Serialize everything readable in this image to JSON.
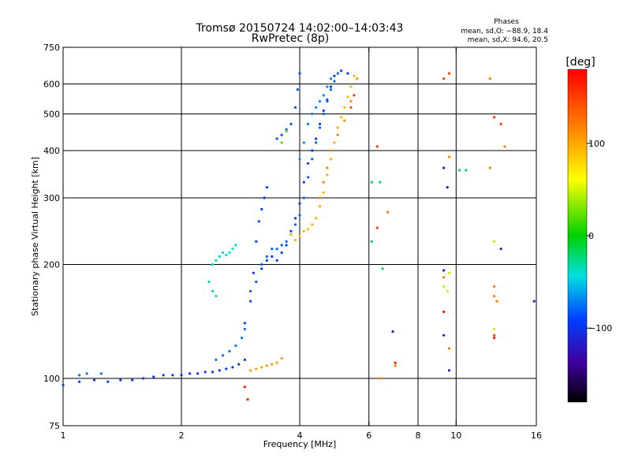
{
  "chart_data": {
    "type": "scatter",
    "title": "Tromsø 20150724 14:02:00–14:03:43",
    "subtitle": "RwPretec (8p)",
    "xlabel": "Frequency [MHz]",
    "ylabel": "Stationary phase Virtual Height [km]",
    "x_scale": "log",
    "y_scale": "log",
    "xlim": [
      1,
      16
    ],
    "ylim": [
      75,
      750
    ],
    "x_ticks": [
      1,
      2,
      4,
      6,
      8,
      10,
      16
    ],
    "x_tick_labels": [
      "1",
      "2",
      "4",
      "6",
      "8",
      "10",
      "16"
    ],
    "y_ticks": [
      75,
      100,
      200,
      300,
      400,
      500,
      600,
      750
    ],
    "y_tick_labels": [
      "75",
      "100",
      "200",
      "300",
      "400",
      "500",
      "600",
      "750"
    ],
    "grid": true,
    "grid_x": [
      2,
      4,
      6,
      8,
      10
    ],
    "grid_y": [
      100,
      200,
      300,
      400,
      500,
      600
    ],
    "stats": {
      "heading": "Phases",
      "line1": "mean, sd,O: −88.9, 18.4",
      "line2": "mean, sd,X:  94.6, 20.5"
    },
    "colorbar": {
      "label": "[deg]",
      "min": -180,
      "max": 180,
      "ticks": [
        -100,
        0,
        100
      ],
      "tick_labels": [
        "−100",
        "0",
        "100"
      ]
    },
    "traces": [
      {
        "phase": -95,
        "points": [
          [
            1.0,
            96
          ],
          [
            1.1,
            98
          ],
          [
            1.2,
            99
          ],
          [
            1.3,
            98
          ],
          [
            1.4,
            99
          ],
          [
            1.5,
            99
          ],
          [
            1.6,
            100
          ],
          [
            1.7,
            101
          ],
          [
            1.8,
            102
          ],
          [
            1.9,
            102
          ],
          [
            2.0,
            102
          ],
          [
            2.1,
            103
          ],
          [
            2.2,
            103
          ],
          [
            2.3,
            104
          ],
          [
            2.4,
            104
          ],
          [
            2.5,
            105
          ],
          [
            2.6,
            106
          ],
          [
            2.7,
            107
          ],
          [
            2.8,
            109
          ],
          [
            2.9,
            112
          ]
        ]
      },
      {
        "phase": -75,
        "points": [
          [
            1.1,
            102
          ],
          [
            1.15,
            103
          ],
          [
            1.25,
            103
          ],
          [
            2.45,
            112
          ],
          [
            2.55,
            115
          ],
          [
            2.65,
            118
          ],
          [
            2.75,
            122
          ],
          [
            2.85,
            128
          ],
          [
            2.9,
            135
          ]
        ]
      },
      {
        "phase": -90,
        "points": [
          [
            2.9,
            140
          ],
          [
            3.0,
            160
          ],
          [
            3.05,
            190
          ],
          [
            3.1,
            230
          ],
          [
            3.15,
            260
          ],
          [
            3.2,
            280
          ],
          [
            3.25,
            300
          ],
          [
            3.3,
            320
          ]
        ]
      },
      {
        "phase": -80,
        "points": [
          [
            3.0,
            170
          ],
          [
            3.1,
            180
          ],
          [
            3.2,
            200
          ],
          [
            3.3,
            210
          ],
          [
            3.4,
            220
          ],
          [
            3.5,
            220
          ],
          [
            3.6,
            225
          ],
          [
            3.7,
            230
          ],
          [
            3.8,
            240
          ],
          [
            3.9,
            255
          ],
          [
            4.0,
            270
          ],
          [
            4.1,
            300
          ],
          [
            4.2,
            340
          ],
          [
            4.3,
            380
          ],
          [
            4.4,
            420
          ],
          [
            4.5,
            460
          ],
          [
            4.6,
            500
          ],
          [
            4.7,
            540
          ],
          [
            4.8,
            580
          ],
          [
            4.9,
            610
          ],
          [
            5.0,
            640
          ]
        ]
      },
      {
        "phase": -95,
        "points": [
          [
            3.2,
            195
          ],
          [
            3.3,
            205
          ],
          [
            3.4,
            210
          ],
          [
            3.5,
            205
          ],
          [
            3.6,
            215
          ],
          [
            3.7,
            225
          ],
          [
            3.8,
            245
          ],
          [
            3.9,
            265
          ],
          [
            4.0,
            290
          ],
          [
            4.1,
            330
          ],
          [
            4.2,
            370
          ],
          [
            4.3,
            400
          ],
          [
            4.4,
            430
          ],
          [
            4.5,
            470
          ],
          [
            4.6,
            510
          ],
          [
            4.7,
            545
          ],
          [
            4.8,
            590
          ],
          [
            4.9,
            630
          ],
          [
            5.1,
            650
          ],
          [
            5.3,
            640
          ]
        ]
      },
      {
        "phase": -70,
        "points": [
          [
            4.0,
            380
          ],
          [
            4.1,
            420
          ],
          [
            4.2,
            470
          ],
          [
            4.3,
            500
          ],
          [
            4.4,
            520
          ],
          [
            4.5,
            540
          ],
          [
            4.6,
            560
          ],
          [
            4.7,
            590
          ],
          [
            4.8,
            620
          ]
        ]
      },
      {
        "phase": -85,
        "points": [
          [
            3.5,
            430
          ],
          [
            3.6,
            440
          ],
          [
            3.7,
            455
          ],
          [
            3.8,
            470
          ],
          [
            3.9,
            520
          ],
          [
            3.95,
            580
          ],
          [
            4.0,
            640
          ]
        ]
      },
      {
        "phase": 95,
        "points": [
          [
            3.8,
            240
          ],
          [
            3.9,
            232
          ],
          [
            4.0,
            238
          ],
          [
            4.1,
            245
          ],
          [
            4.2,
            248
          ],
          [
            4.3,
            255
          ],
          [
            4.4,
            265
          ],
          [
            4.5,
            285
          ],
          [
            4.6,
            310
          ],
          [
            4.7,
            345
          ],
          [
            4.8,
            380
          ],
          [
            4.9,
            420
          ],
          [
            5.0,
            460
          ],
          [
            5.1,
            490
          ],
          [
            5.2,
            520
          ],
          [
            5.3,
            555
          ],
          [
            5.4,
            590
          ],
          [
            5.5,
            630
          ]
        ]
      },
      {
        "phase": 115,
        "points": [
          [
            4.5,
            300
          ],
          [
            4.6,
            330
          ],
          [
            4.7,
            360
          ],
          [
            4.8,
            400
          ],
          [
            5.0,
            440
          ],
          [
            5.2,
            480
          ],
          [
            5.4,
            540
          ],
          [
            5.6,
            620
          ]
        ]
      },
      {
        "phase": 105,
        "points": [
          [
            3.0,
            105
          ],
          [
            3.1,
            106
          ],
          [
            3.2,
            107
          ],
          [
            3.3,
            108
          ],
          [
            3.4,
            109
          ],
          [
            3.5,
            110
          ],
          [
            3.6,
            113
          ]
        ]
      },
      {
        "phase": -40,
        "points": [
          [
            2.4,
            200
          ],
          [
            2.45,
            205
          ],
          [
            2.5,
            210
          ],
          [
            2.55,
            215
          ],
          [
            2.6,
            212
          ],
          [
            2.65,
            215
          ],
          [
            2.7,
            220
          ],
          [
            2.75,
            225
          ],
          [
            2.35,
            180
          ],
          [
            2.4,
            170
          ],
          [
            2.45,
            165
          ]
        ]
      },
      {
        "phase": 20,
        "points": [
          [
            3.6,
            420
          ],
          [
            3.7,
            450
          ]
        ]
      },
      {
        "phase": 150,
        "points": [
          [
            5.4,
            520
          ],
          [
            5.5,
            560
          ],
          [
            6.3,
            410
          ],
          [
            6.3,
            250
          ],
          [
            9.3,
            620
          ],
          [
            9.6,
            640
          ],
          [
            12.5,
            490
          ],
          [
            12.5,
            130
          ],
          [
            13.0,
            470
          ]
        ]
      },
      {
        "phase": -20,
        "points": [
          [
            6.1,
            330
          ],
          [
            6.4,
            330
          ],
          [
            6.1,
            230
          ],
          [
            6.5,
            195
          ],
          [
            10.2,
            355
          ],
          [
            10.6,
            355
          ]
        ]
      },
      {
        "phase": -115,
        "points": [
          [
            9.3,
            360
          ],
          [
            9.5,
            320
          ],
          [
            9.3,
            193
          ],
          [
            9.6,
            105
          ],
          [
            6.9,
            133
          ],
          [
            9.3,
            130
          ],
          [
            13.0,
            220
          ],
          [
            15.8,
            160
          ]
        ]
      },
      {
        "phase": 45,
        "points": [
          [
            12.5,
            230
          ],
          [
            12.5,
            135
          ],
          [
            9.3,
            175
          ],
          [
            9.5,
            170
          ],
          [
            9.6,
            190
          ]
        ]
      },
      {
        "phase": 120,
        "points": [
          [
            6.4,
            100
          ],
          [
            6.7,
            275
          ],
          [
            7.0,
            108
          ],
          [
            9.3,
            185
          ],
          [
            9.6,
            120
          ],
          [
            12.2,
            620
          ],
          [
            12.5,
            175
          ],
          [
            12.5,
            165
          ],
          [
            12.7,
            160
          ],
          [
            13.3,
            410
          ],
          [
            12.2,
            360
          ],
          [
            9.6,
            385
          ]
        ]
      },
      {
        "phase": 170,
        "points": [
          [
            9.3,
            150
          ],
          [
            7.0,
            110
          ],
          [
            2.9,
            95
          ],
          [
            2.95,
            88
          ],
          [
            12.5,
            128
          ]
        ]
      }
    ]
  }
}
